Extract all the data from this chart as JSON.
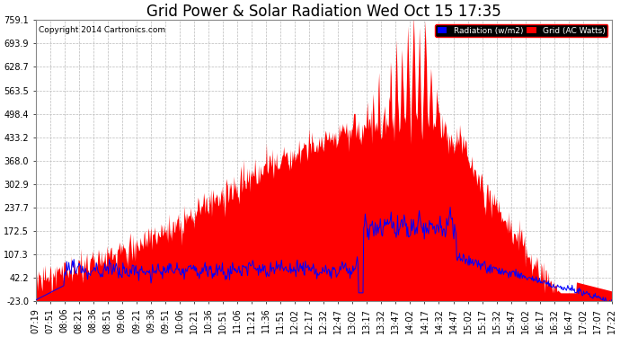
{
  "title": "Grid Power & Solar Radiation Wed Oct 15 17:35",
  "copyright": "Copyright 2014 Cartronics.com",
  "legend_labels": [
    "Radiation (w/m2)",
    "Grid (AC Watts)"
  ],
  "yticks": [
    -23.0,
    42.2,
    107.3,
    172.5,
    237.7,
    302.9,
    368.0,
    433.2,
    498.4,
    563.5,
    628.7,
    693.9,
    759.1
  ],
  "ymin": -23.0,
  "ymax": 759.1,
  "bg_color": "#ffffff",
  "grid_color": "#bbbbbb",
  "title_fontsize": 12,
  "tick_label_fontsize": 7,
  "radiation_color": "#ff0000",
  "grid_power_color": "#0000ff",
  "xtick_labels": [
    "07:19",
    "07:51",
    "08:06",
    "08:21",
    "08:36",
    "08:51",
    "09:06",
    "09:21",
    "09:36",
    "09:51",
    "10:06",
    "10:21",
    "10:36",
    "10:51",
    "11:06",
    "11:21",
    "11:36",
    "11:51",
    "12:02",
    "12:17",
    "12:32",
    "12:47",
    "13:02",
    "13:17",
    "13:32",
    "13:47",
    "14:02",
    "14:17",
    "14:32",
    "14:47",
    "15:02",
    "15:17",
    "15:32",
    "15:47",
    "16:02",
    "16:17",
    "16:32",
    "16:47",
    "17:02",
    "17:07",
    "17:22"
  ]
}
